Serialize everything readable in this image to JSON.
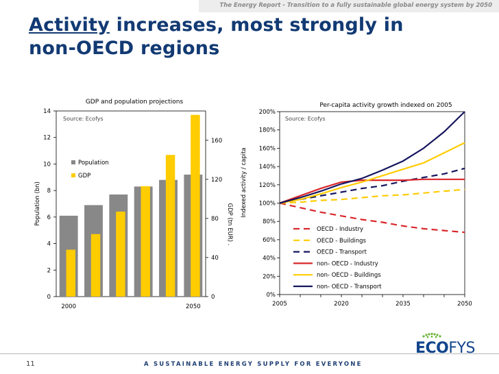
{
  "header": {
    "text": "The Energy Report - Transition to a fully sustainable global energy system by 2050"
  },
  "title": {
    "keyword": "Activity",
    "rest_line1": " increases, most strongly in",
    "line2": "non-OECD regions"
  },
  "footer": {
    "page_number": "11",
    "tagline": "A SUSTAINABLE ENERGY SUPPLY FOR EVERYONE"
  },
  "logo": {
    "part1": "ECO",
    "part2": "FYS"
  },
  "chart_data": [
    {
      "type": "bar",
      "title": "GDP and population projections",
      "source": "Source: Ecofys",
      "ylabel": "Population (bn)",
      "y2label": "GDP (tn EUR) .",
      "ylim": [
        0,
        14
      ],
      "y2lim": [
        0,
        190
      ],
      "yticks": [
        "0",
        "2",
        "4",
        "6",
        "8",
        "10",
        "12",
        "14"
      ],
      "y2ticks": [
        "0",
        "40",
        "80",
        "120",
        "160"
      ],
      "xtick_labels": [
        "2000",
        "2050"
      ],
      "legend": [
        "Population",
        "GDP"
      ],
      "series": [
        {
          "name": "Population",
          "axis": "left",
          "color": "#888888",
          "values": [
            6.1,
            6.9,
            7.7,
            8.3,
            8.8,
            9.2
          ]
        },
        {
          "name": "GDP",
          "axis": "right",
          "color": "#ffcc00",
          "values": [
            48,
            64,
            87,
            113,
            145,
            186
          ]
        }
      ]
    },
    {
      "type": "line",
      "title": "Per-capita activity growth indexed on 2005",
      "source": "Source: Ecofys",
      "ylabel": "Indexed activity / capita",
      "x": [
        2005,
        2010,
        2015,
        2020,
        2025,
        2030,
        2035,
        2040,
        2045,
        2050
      ],
      "xlim": [
        2005,
        2050
      ],
      "xticks": [
        "2005",
        "2020",
        "2035",
        "2050"
      ],
      "ylim": [
        0,
        200
      ],
      "yticks": [
        "0%",
        "20%",
        "40%",
        "60%",
        "80%",
        "100%",
        "120%",
        "140%",
        "160%",
        "180%",
        "200%"
      ],
      "series": [
        {
          "name": "OECD - Industry",
          "color": "#d9262b",
          "dash": true,
          "values": [
            100,
            95,
            90,
            86,
            82,
            79,
            75,
            72,
            70,
            68
          ]
        },
        {
          "name": "OECD - Buildings",
          "color": "#ffcc00",
          "dash": true,
          "values": [
            100,
            101,
            103,
            104,
            106,
            108,
            109,
            111,
            113,
            115
          ]
        },
        {
          "name": "OECD - Transport",
          "color": "#14145e",
          "dash": true,
          "values": [
            100,
            104,
            108,
            112,
            116,
            119,
            124,
            128,
            132,
            138
          ]
        },
        {
          "name": "non- OECD -  Industry",
          "color": "#d9262b",
          "dash": false,
          "values": [
            100,
            108,
            116,
            123,
            125,
            125,
            125,
            126,
            126,
            126
          ]
        },
        {
          "name": "non- OECD -  Buildings",
          "color": "#ffcc00",
          "dash": false,
          "values": [
            100,
            104,
            110,
            117,
            123,
            130,
            137,
            144,
            155,
            166
          ]
        },
        {
          "name": "non- OECD -  Transport",
          "color": "#14145e",
          "dash": false,
          "values": [
            100,
            106,
            113,
            121,
            127,
            136,
            146,
            160,
            178,
            200
          ]
        }
      ]
    }
  ]
}
